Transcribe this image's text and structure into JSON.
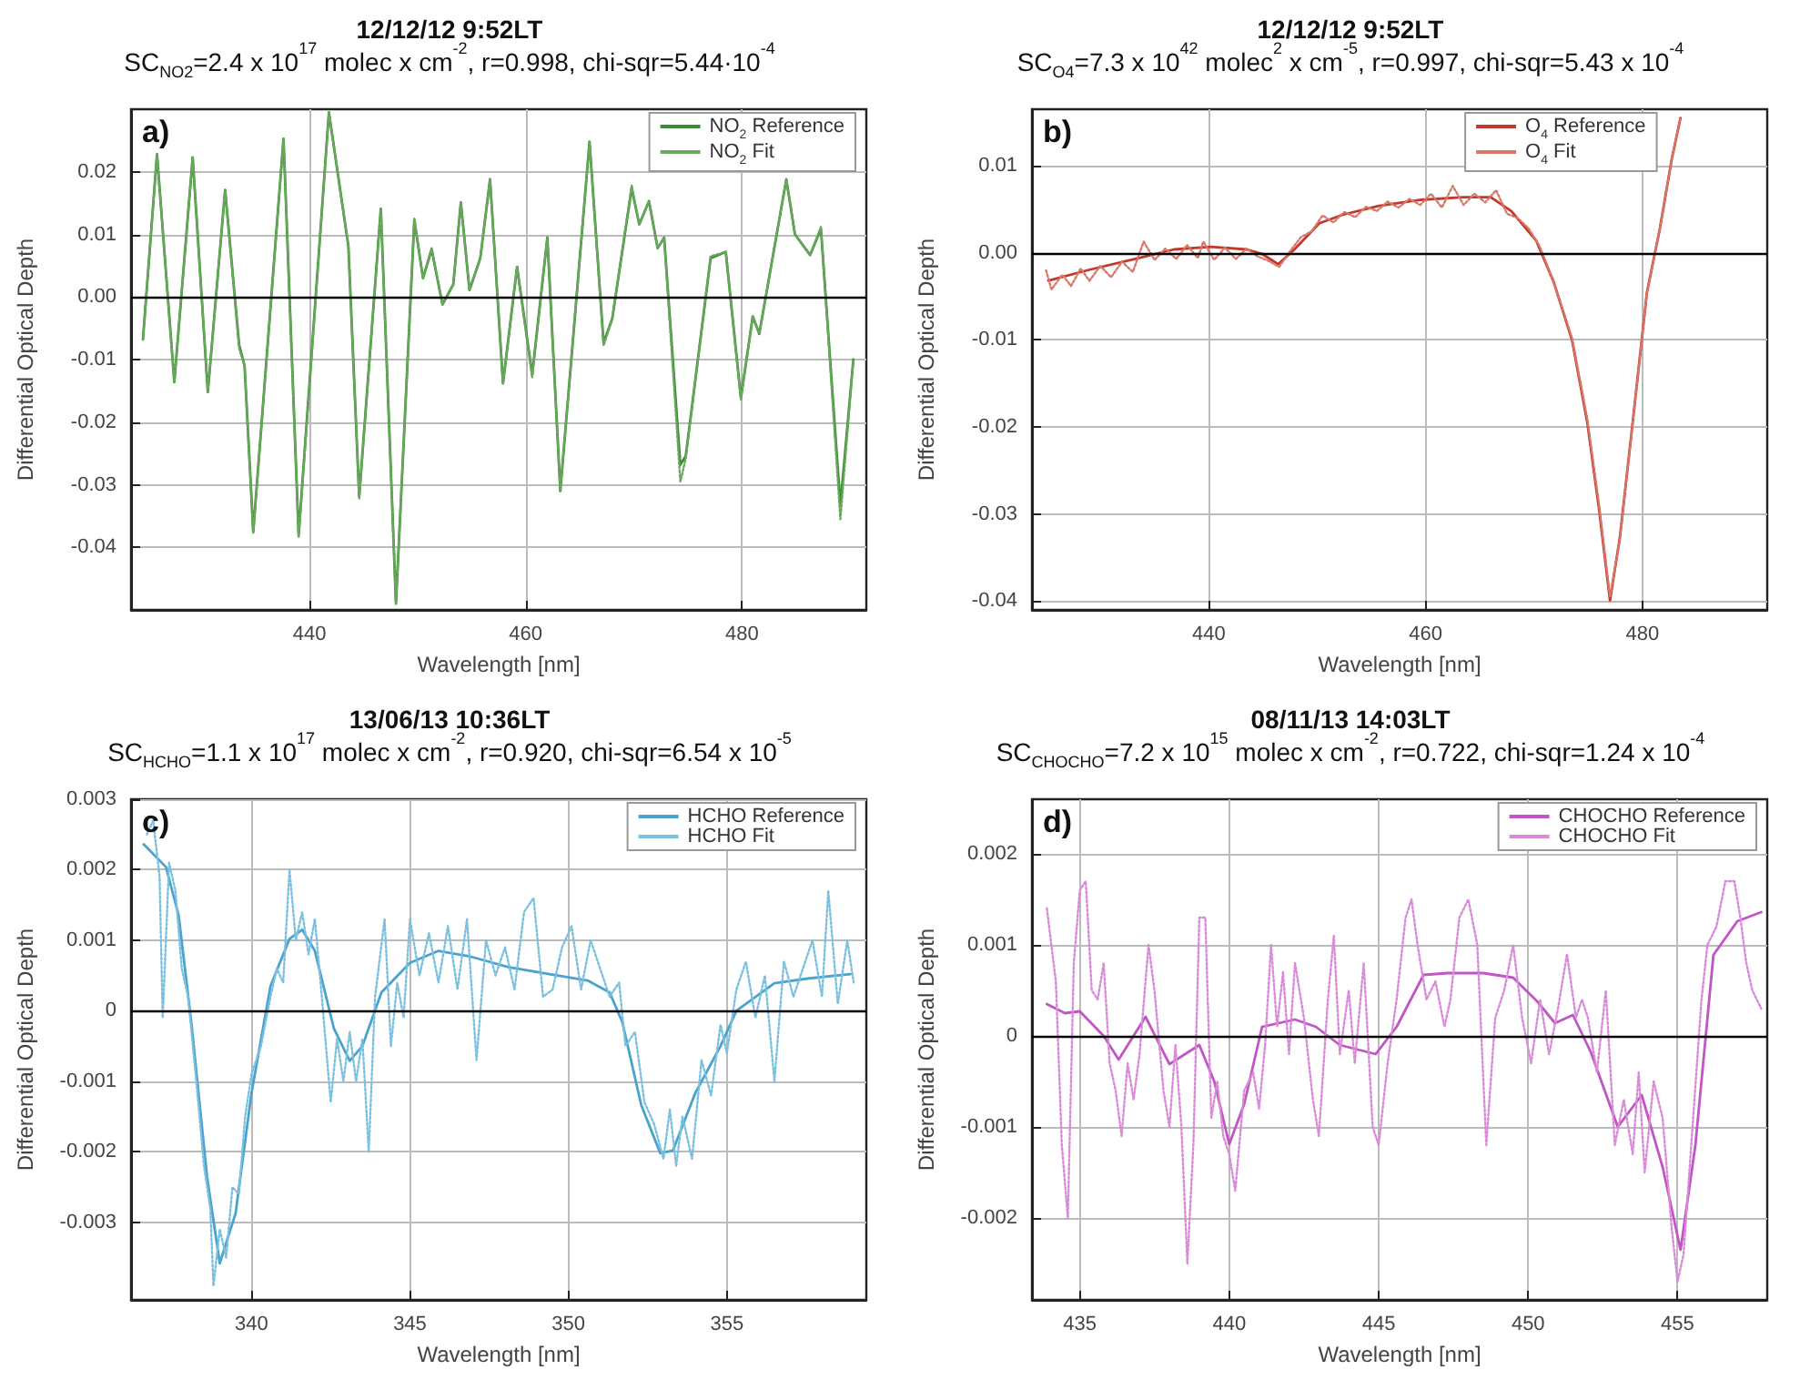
{
  "chart_data": [
    {
      "type": "line",
      "title": "12/12/12 9:52LT",
      "subtitle": "SC$_{NO2}$=2.4 x 10$^{17}$ molec x cm$^{-2}$, r=0.998, chi-sqr=5.44·10$^{-4}$",
      "xlabel": "Wavelength [nm]",
      "ylabel": "Differential Optical Depth",
      "annotations": [
        "a)"
      ],
      "xlim": [
        423.5,
        491.5
      ],
      "xticks": [
        440,
        460,
        480
      ],
      "ylim": [
        -0.05,
        0.03
      ],
      "yticks": [
        -0.04,
        -0.03,
        -0.02,
        -0.01,
        {
          "value": 0,
          "label": "0.00"
        },
        0.01,
        0.02
      ],
      "grid": true,
      "legend": "top right",
      "marker": "none",
      "ref_lines": [
        {
          "axis": "y",
          "value": 0,
          "color": "#000000"
        }
      ],
      "series": [
        {
          "name": "NO$_{2}$ Reference",
          "color": "#3d8b37",
          "line_style": "solid",
          "x": [
            424.6,
            425.9,
            427.5,
            429.2,
            430.6,
            432.2,
            433.5,
            434.0,
            434.8,
            437.6,
            439.0,
            441.8,
            443.6,
            444.6,
            446.6,
            448.0,
            449.7,
            450.5,
            451.3,
            452.3,
            453.3,
            454.0,
            454.8,
            455.8,
            456.7,
            457.9,
            459.2,
            460.6,
            462.0,
            463.2,
            465.9,
            467.2,
            468.0,
            469.8,
            470.5,
            471.4,
            472.2,
            472.8,
            474.3,
            474.8,
            477.1,
            478.5,
            479.9,
            481.0,
            481.6,
            484.1,
            484.9,
            486.3,
            487.3,
            489.1,
            490.3
          ],
          "values": [
            -0.0068,
            0.0228,
            -0.0136,
            0.0223,
            -0.0152,
            0.0171,
            -0.0077,
            -0.011,
            -0.0375,
            0.0253,
            -0.038,
            0.0295,
            0.0081,
            -0.0319,
            0.0141,
            -0.049,
            0.0123,
            0.003,
            0.0076,
            -0.0012,
            0.002,
            0.0151,
            0.0011,
            0.0062,
            0.0188,
            -0.0138,
            0.0048,
            -0.0124,
            0.0095,
            -0.031,
            0.0248,
            -0.0073,
            -0.0035,
            0.0174,
            0.0116,
            0.0153,
            0.0078,
            0.0095,
            -0.0268,
            -0.0254,
            0.0062,
            0.0072,
            -0.0161,
            -0.0031,
            -0.0059,
            0.0188,
            0.01,
            0.0067,
            0.0109,
            -0.0333,
            -0.01
          ]
        },
        {
          "name": "NO$_{2}$ Fit",
          "color": "#6aa85e",
          "line_style": "dotted",
          "x": [
            424.6,
            425.9,
            427.5,
            429.2,
            430.6,
            432.2,
            433.5,
            434.0,
            434.8,
            437.6,
            439.0,
            441.8,
            443.6,
            444.6,
            446.6,
            448.0,
            449.7,
            450.5,
            451.3,
            452.3,
            453.3,
            454.0,
            454.8,
            455.8,
            456.7,
            457.9,
            459.2,
            460.6,
            462.0,
            463.2,
            465.9,
            467.2,
            468.0,
            469.8,
            470.5,
            471.4,
            472.2,
            472.8,
            474.3,
            474.8,
            477.1,
            478.5,
            479.9,
            481.0,
            481.6,
            484.1,
            484.9,
            486.3,
            487.3,
            489.1,
            490.3
          ],
          "values": [
            -0.0068,
            0.0228,
            -0.0136,
            0.0223,
            -0.0152,
            0.0171,
            -0.0082,
            -0.011,
            -0.0378,
            0.0253,
            -0.0385,
            0.0295,
            0.0081,
            -0.0322,
            0.0141,
            -0.049,
            0.0125,
            0.003,
            0.0078,
            -0.0012,
            0.002,
            0.0151,
            0.0011,
            0.0062,
            0.0188,
            -0.0138,
            0.0048,
            -0.0128,
            0.0095,
            -0.031,
            0.0248,
            -0.0078,
            -0.0035,
            0.0178,
            0.0116,
            0.0153,
            0.0078,
            0.0095,
            -0.0295,
            -0.0258,
            0.0065,
            0.0072,
            -0.0164,
            -0.0031,
            -0.0059,
            0.0188,
            0.01,
            0.0067,
            0.0112,
            -0.0355,
            -0.01
          ]
        }
      ]
    },
    {
      "type": "line",
      "title": "12/12/12 9:52LT",
      "subtitle": "SC$_{O4}$=7.3 x 10$^{42}$ molec$^{2}$ x cm$^{-5}$, r=0.997, chi-sqr=5.43 x 10$^{-4}$",
      "xlabel": "Wavelength [nm]",
      "ylabel": "Differential Optical Depth",
      "annotations": [
        "b)"
      ],
      "xlim": [
        423.7,
        491.5
      ],
      "xticks": [
        440,
        460,
        480
      ],
      "ylim": [
        -0.041,
        0.0165
      ],
      "yticks": [
        -0.04,
        -0.03,
        -0.02,
        -0.01,
        {
          "value": 0,
          "label": "0.00"
        },
        0.01
      ],
      "grid": true,
      "legend": "top right",
      "marker": "none",
      "ref_lines": [
        {
          "axis": "y",
          "value": 0,
          "color": "#000000"
        }
      ],
      "series": [
        {
          "name": "O$_{4}$ Reference",
          "color": "#c0392b",
          "line_style": "solid",
          "x": [
            425.2,
            429.1,
            433.5,
            436.8,
            440.2,
            443.5,
            444.9,
            446.4,
            447.9,
            450.2,
            452.4,
            455.7,
            459.6,
            463.5,
            466.0,
            467.9,
            470.2,
            471.8,
            473.5,
            474.9,
            476.0,
            477.0,
            477.9,
            479.1,
            480.4,
            481.6,
            482.7,
            483.5
          ],
          "values": [
            -0.0032,
            -0.0019,
            -0.0006,
            0.0004,
            0.0007,
            0.0004,
            -0.0001,
            -0.0013,
            0.0004,
            0.0034,
            0.0044,
            0.0054,
            0.0061,
            0.0064,
            0.0064,
            0.0048,
            0.0014,
            -0.0033,
            -0.01,
            -0.0194,
            -0.0295,
            -0.0399,
            -0.0328,
            -0.0194,
            -0.0046,
            0.0028,
            0.0108,
            0.0155
          ]
        },
        {
          "name": "O$_{4}$ Fit",
          "color": "#d9776b",
          "line_style": "dotted",
          "x": [
            425.0,
            425.5,
            426.5,
            427.3,
            428.2,
            429.0,
            430.0,
            431.0,
            432.0,
            433.0,
            434.0,
            435.0,
            436.0,
            437.0,
            438.0,
            439.0,
            439.5,
            440.5,
            441.5,
            442.5,
            443.5,
            444.5,
            445.5,
            446.5,
            447.5,
            448.5,
            449.5,
            450.5,
            451.5,
            452.5,
            453.5,
            454.5,
            455.5,
            456.5,
            457.5,
            458.5,
            459.5,
            460.5,
            461.5,
            462.5,
            463.5,
            464.5,
            465.5,
            466.5,
            467.5,
            468.5,
            469.5,
            470.5,
            471.8,
            473.5,
            474.9,
            476.0,
            477.0,
            477.9,
            479.1,
            480.4,
            481.6,
            482.7,
            483.5
          ],
          "values": [
            -0.002,
            -0.0042,
            -0.0025,
            -0.0038,
            -0.0018,
            -0.0032,
            -0.0015,
            -0.0028,
            -0.001,
            -0.0022,
            0.0013,
            -0.0008,
            0.0005,
            -0.0007,
            0.0009,
            -0.0006,
            0.0013,
            -0.0008,
            0.0006,
            -0.0007,
            0.0005,
            -0.0004,
            -0.0009,
            -0.0016,
            0.0002,
            0.0018,
            0.0025,
            0.0043,
            0.0035,
            0.0047,
            0.0041,
            0.0053,
            0.0048,
            0.0059,
            0.0052,
            0.0062,
            0.0055,
            0.0068,
            0.0052,
            0.0077,
            0.0055,
            0.0068,
            0.0058,
            0.0072,
            0.0045,
            0.004,
            0.0028,
            0.0008,
            -0.0033,
            -0.0098,
            -0.019,
            -0.029,
            -0.0395,
            -0.033,
            -0.0195,
            -0.0046,
            0.0028,
            0.0108,
            0.0155
          ]
        }
      ]
    },
    {
      "type": "line",
      "title": "13/06/13 10:36LT",
      "subtitle": "SC$_{HCHO}$=1.1 x 10$^{17}$ molec x cm$^{-2}$, r=0.920, chi-sqr=6.54 x 10$^{-5}$",
      "xlabel": "Wavelength [nm]",
      "ylabel": "Differential Optical Depth",
      "annotations": [
        "c)"
      ],
      "xlim": [
        336.2,
        359.4
      ],
      "xticks": [
        340,
        345,
        350,
        355
      ],
      "ylim": [
        -0.0041,
        0.003
      ],
      "yticks": [
        -0.003,
        -0.002,
        -0.001,
        0,
        0.001,
        0.002,
        0.003
      ],
      "grid": true,
      "legend": "top right",
      "marker": "none",
      "ref_lines": [
        {
          "axis": "y",
          "value": 0,
          "color": "#000000"
        }
      ],
      "series": [
        {
          "name": "HCHO Reference",
          "color": "#4aa3cc",
          "line_style": "solid",
          "x": [
            336.6,
            337.3,
            337.7,
            338.1,
            338.6,
            339.0,
            339.5,
            340.0,
            340.6,
            341.2,
            341.6,
            342.0,
            342.6,
            343.1,
            343.5,
            344.1,
            345.0,
            345.9,
            346.9,
            348.1,
            349.4,
            350.6,
            351.3,
            351.7,
            352.3,
            352.9,
            353.3,
            354.0,
            354.8,
            355.3,
            356.5,
            357.6,
            358.9
          ],
          "values": [
            0.00236,
            0.00204,
            0.00136,
            -0.00016,
            -0.00236,
            -0.00358,
            -0.00287,
            -0.00117,
            0.00035,
            0.00102,
            0.00115,
            0.00085,
            -0.00025,
            -0.00071,
            -0.0005,
            0.00026,
            0.00068,
            0.00085,
            0.00077,
            0.00062,
            0.00052,
            0.00043,
            0.00026,
            -0.00016,
            -0.00134,
            -0.00202,
            -0.00198,
            -0.00117,
            -0.0005,
            0,
            0.00039,
            0.00046,
            0.00052
          ]
        },
        {
          "name": "HCHO Fit",
          "color": "#7cc0e0",
          "line_style": "dotted",
          "x": [
            336.7,
            336.9,
            337.1,
            337.2,
            337.4,
            337.6,
            337.8,
            338.0,
            338.3,
            338.5,
            338.7,
            338.8,
            339.0,
            339.2,
            339.4,
            339.6,
            339.8,
            340.0,
            340.3,
            340.6,
            340.8,
            341.0,
            341.2,
            341.4,
            341.6,
            341.8,
            342.0,
            342.2,
            342.5,
            342.7,
            342.9,
            343.1,
            343.3,
            343.5,
            343.7,
            343.9,
            344.2,
            344.4,
            344.6,
            344.8,
            345.0,
            345.3,
            345.6,
            345.9,
            346.2,
            346.5,
            346.8,
            347.1,
            347.4,
            347.7,
            348.0,
            348.3,
            348.6,
            348.9,
            349.2,
            349.5,
            349.8,
            350.1,
            350.4,
            350.7,
            351.0,
            351.3,
            351.6,
            351.8,
            352.1,
            352.4,
            352.7,
            353.0,
            353.2,
            353.4,
            353.6,
            353.9,
            354.2,
            354.5,
            354.8,
            355.0,
            355.3,
            355.6,
            355.9,
            356.2,
            356.5,
            356.8,
            357.1,
            357.4,
            357.7,
            358.0,
            358.2,
            358.5,
            358.8,
            359.0
          ],
          "values": [
            0.0025,
            0.0027,
            0.0019,
            -0.0001,
            0.0021,
            0.0017,
            0.0006,
            0.0002,
            -0.0012,
            -0.0022,
            -0.0028,
            -0.0039,
            -0.0031,
            -0.0035,
            -0.0025,
            -0.0026,
            -0.0015,
            -0.0009,
            -0.0005,
            0.0002,
            0.0006,
            0.0004,
            0.002,
            0.001,
            0.0014,
            0.0008,
            0.0013,
            0.0003,
            -0.0013,
            -0.0004,
            -0.001,
            -0.0003,
            -0.001,
            -0.0004,
            -0.002,
            0.0002,
            0.0013,
            -0.0005,
            0.0004,
            -0.0001,
            0.0013,
            0.0005,
            0.0011,
            0.0004,
            0.0012,
            0.0003,
            0.0013,
            -0.0007,
            0.001,
            0.0005,
            0.0009,
            0.0003,
            0.0014,
            0.0016,
            0.0002,
            0.0003,
            0.0009,
            0.0012,
            0.0003,
            0.001,
            0.0006,
            0.0002,
            0.0004,
            -0.0005,
            -0.0003,
            -0.0013,
            -0.0016,
            -0.0021,
            -0.0014,
            -0.0022,
            -0.0015,
            -0.0021,
            -0.0007,
            -0.0012,
            -0.0002,
            -0.0006,
            0.0003,
            0.0007,
            -0.0001,
            0.0005,
            -0.001,
            0.0007,
            0.0002,
            0.0006,
            0.001,
            0.0002,
            0.0017,
            0.0001,
            0.001,
            0.0004
          ]
        }
      ]
    },
    {
      "type": "line",
      "title": "08/11/13 14:03LT",
      "subtitle": "SC$_{CHOCHO}$=7.2 x 10$^{15}$ molec x cm$^{-2}$, r=0.722, chi-sqr=1.24 x 10$^{-4}$",
      "xlabel": "Wavelength [nm]",
      "ylabel": "Differential Optical Depth",
      "annotations": [
        "d)"
      ],
      "xlim": [
        433.4,
        458.0
      ],
      "xticks": [
        435,
        440,
        445,
        450,
        455
      ],
      "ylim": [
        -0.0029,
        0.0026
      ],
      "yticks": [
        -0.002,
        -0.001,
        0,
        0.001,
        0.002
      ],
      "grid": true,
      "legend": "top right",
      "marker": "none",
      "ref_lines": [
        {
          "axis": "y",
          "value": 0,
          "color": "#000000"
        }
      ],
      "series": [
        {
          "name": "CHOCHO Reference",
          "color": "#c055c4",
          "line_style": "solid",
          "x": [
            433.9,
            434.5,
            435.0,
            435.8,
            436.3,
            437.2,
            438.0,
            439.0,
            439.5,
            440.0,
            440.5,
            441.1,
            442.2,
            442.9,
            443.7,
            444.9,
            445.6,
            446.5,
            447.3,
            448.5,
            449.5,
            450.3,
            450.9,
            451.5,
            452.1,
            453.0,
            453.8,
            454.5,
            455.1,
            455.6,
            456.2,
            457.0,
            457.8
          ],
          "values": [
            0.00035,
            0.00025,
            0.00027,
            0,
            -0.00026,
            0.00021,
            -0.00031,
            -0.0001,
            -0.0005,
            -0.00119,
            -0.00075,
            0.0001,
            0.00018,
            0.0001,
            -0.0001,
            -0.0002,
            0.0001,
            0.00067,
            0.00069,
            0.00069,
            0.00064,
            0.00038,
            0.00014,
            0.00023,
            -0.00018,
            -0.001,
            -0.00065,
            -0.00144,
            -0.00235,
            -0.00119,
            0.00089,
            0.00126,
            0.00136
          ]
        },
        {
          "name": "CHOCHO Fit",
          "color": "#d98ad9",
          "line_style": "dotted",
          "x": [
            433.9,
            434.2,
            434.4,
            434.6,
            434.8,
            435.0,
            435.2,
            435.4,
            435.6,
            435.8,
            436.0,
            436.2,
            436.4,
            436.6,
            436.8,
            437.0,
            437.3,
            437.5,
            437.8,
            438.0,
            438.2,
            438.4,
            438.6,
            438.8,
            439.0,
            439.2,
            439.4,
            439.6,
            439.8,
            440.0,
            440.2,
            440.5,
            440.8,
            441.0,
            441.2,
            441.4,
            441.6,
            441.8,
            442.0,
            442.2,
            442.5,
            442.8,
            443.0,
            443.3,
            443.5,
            443.7,
            444.0,
            444.2,
            444.5,
            444.8,
            445.0,
            445.3,
            445.6,
            445.9,
            446.1,
            446.3,
            446.6,
            446.9,
            447.2,
            447.4,
            447.7,
            448.0,
            448.3,
            448.6,
            448.9,
            449.2,
            449.5,
            449.8,
            450.1,
            450.4,
            450.7,
            451.0,
            451.3,
            451.6,
            451.8,
            452.0,
            452.3,
            452.6,
            452.9,
            453.2,
            453.5,
            453.7,
            453.9,
            454.2,
            454.5,
            454.8,
            455.0,
            455.2,
            455.5,
            455.8,
            456.0,
            456.3,
            456.6,
            456.9,
            457.1,
            457.3,
            457.5,
            457.8
          ],
          "values": [
            0.0014,
            0.0006,
            -0.0012,
            -0.002,
            0.0008,
            0.0016,
            0.0017,
            0.0005,
            0.0004,
            0.0008,
            -0.0003,
            -0.0006,
            -0.0011,
            -0.0003,
            -0.0007,
            -0.0002,
            0.001,
            0.0005,
            -0.0006,
            -0.001,
            -0.0001,
            -0.001,
            -0.0025,
            -0.0012,
            0.0013,
            0.0013,
            -0.0009,
            -0.0005,
            -0.0011,
            -0.0013,
            -0.0017,
            -0.0006,
            -0.0004,
            -0.0008,
            -0.0001,
            0.001,
            0.0001,
            0.0007,
            -0.0002,
            0.0008,
            0.0002,
            -0.0007,
            -0.0011,
            0.0004,
            0.0011,
            -0.0002,
            0.0005,
            -0.0003,
            0.0008,
            -0.001,
            -0.0012,
            -0.0003,
            0.0004,
            0.0013,
            0.0015,
            0.001,
            0.0004,
            0.0006,
            0.0001,
            0.0004,
            0.0013,
            0.0015,
            0.001,
            -0.0012,
            0.0002,
            0.0005,
            0.001,
            0.0002,
            -0.0003,
            0.0004,
            -0.0002,
            0.0003,
            0.0009,
            0.0002,
            0.0004,
            0.0002,
            -0.0004,
            0.0005,
            -0.0012,
            -0.0007,
            -0.0013,
            -0.0004,
            -0.0015,
            -0.0005,
            -0.0009,
            -0.0021,
            -0.0027,
            -0.0024,
            -0.001,
            0.0004,
            0.001,
            0.0012,
            0.0017,
            0.0017,
            0.0013,
            0.0008,
            0.0005,
            0.0003
          ]
        }
      ]
    }
  ]
}
